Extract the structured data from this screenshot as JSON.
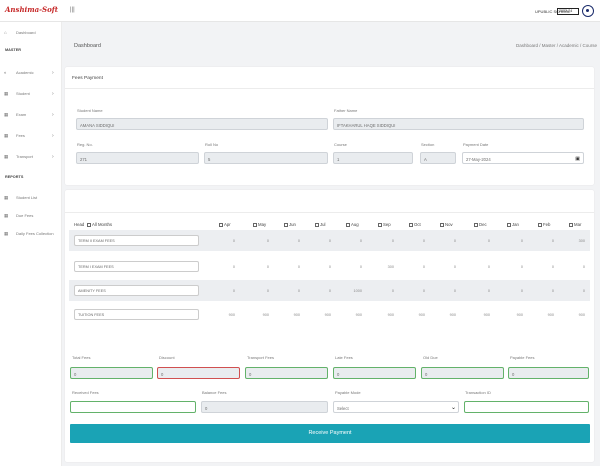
{
  "header": {
    "logo_text": "Anshima-Soft",
    "school_name": "UPUBLIC SCHOOL",
    "school_select": "2023-24"
  },
  "sidebar": {
    "dashboard": "Dashboard",
    "master_heading": "MASTER",
    "items": [
      "Academic",
      "Student",
      "Exam",
      "Fees",
      "Transport"
    ],
    "reports_heading": "REPORTS",
    "reports": [
      "Student List",
      "Due Fees",
      "Daily Fees Collection"
    ]
  },
  "page": {
    "title": "Dashboard",
    "breadcrumb": "Dashboard / Master / Academic / Course"
  },
  "fees_payment": {
    "card_title": "Fees Payment",
    "student_name_label": "Student Name",
    "student_name_value": "AMANA SIDDIQUI",
    "father_name_label": "Father Name",
    "father_name_value": "IFTAKHARUL HAQE SIDDIQUI",
    "reg_no_label": "Reg. No.",
    "reg_no_value": "271",
    "roll_no_label": "Roll No",
    "roll_no_value": "5",
    "course_label": "Course",
    "course_value": "1",
    "section_label": "Section",
    "section_value": "A",
    "payment_date_label": "Payment Date",
    "payment_date_value": "27-May-2024"
  },
  "fees_table": {
    "head_label": "Head",
    "all_months_label": "All Months",
    "months": [
      "Apr",
      "May",
      "Jun",
      "Jul",
      "Aug",
      "Sep",
      "Oct",
      "Nov",
      "Dec",
      "Jan",
      "Feb",
      "Mar"
    ],
    "rows": [
      {
        "head": "TERM II EXAM FEES",
        "values": [
          "0",
          "0",
          "0",
          "0",
          "0",
          "0",
          "0",
          "0",
          "0",
          "0",
          "0",
          "300"
        ]
      },
      {
        "head": "TERM I EXAM FEES",
        "values": [
          "0",
          "0",
          "0",
          "0",
          "0",
          "300",
          "0",
          "0",
          "0",
          "0",
          "0",
          "0"
        ]
      },
      {
        "head": "AMENITY FEES",
        "values": [
          "0",
          "0",
          "0",
          "0",
          "1000",
          "0",
          "0",
          "0",
          "0",
          "0",
          "0",
          "0"
        ]
      },
      {
        "head": "TUITION FEES",
        "values": [
          "900",
          "900",
          "900",
          "900",
          "900",
          "900",
          "900",
          "900",
          "900",
          "900",
          "900",
          "900"
        ]
      }
    ]
  },
  "summary": {
    "total_fees_label": "Total Fees",
    "total_fees_value": "0",
    "discount_label": "Discount",
    "discount_value": "0",
    "transport_fees_label": "Transport Fees",
    "transport_fees_value": "0",
    "late_fees_label": "Late Fees",
    "late_fees_value": "0",
    "old_due_label": "Old Due",
    "old_due_value": "0",
    "payable_fees_label": "Payable Fees",
    "payable_fees_value": "0",
    "received_fees_label": "Received Fees",
    "received_fees_value": "",
    "balance_fees_label": "Balance Fees",
    "balance_fees_value": "0",
    "payable_mode_label": "Payable Mode",
    "payable_mode_value": "Select",
    "transaction_id_label": "Transaction ID",
    "transaction_id_value": ""
  },
  "actions": {
    "receive_payment_label": "Receive Payment"
  },
  "colors": {
    "accent": "#1aa3b5",
    "valid_border": "#63b26a",
    "invalid_border": "#d05050"
  }
}
